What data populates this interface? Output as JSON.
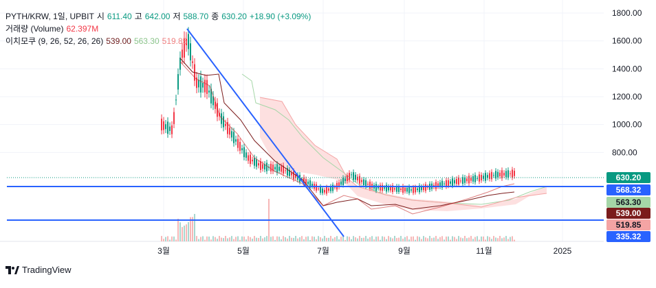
{
  "legend": {
    "symbol": "PYTH/KRW, 1일, UPBIT",
    "open_label": "시",
    "open": "611.40",
    "high_label": "고",
    "high": "642.00",
    "low_label": "저",
    "low": "588.70",
    "close_label": "종",
    "close": "630.20",
    "change": "+18.90 (+3.09%)",
    "volume_label": "거래량 (Volume)",
    "volume_value": "62.397M",
    "ichimoku_label": "이치모쿠 (9, 26, 52, 26, 26)",
    "ichimoku_v1": "539.00",
    "ichimoku_v2": "563.30",
    "ichimoku_v3": "519.85"
  },
  "price_axis": [
    "1800.00",
    "1600.00",
    "1400.00",
    "1200.00",
    "1000.00",
    "800.00"
  ],
  "time_axis": [
    "3월",
    "5월",
    "7월",
    "9월",
    "11월",
    "2025"
  ],
  "badges": [
    {
      "label": "630.20",
      "color": "#089981"
    },
    {
      "label": "568.32",
      "color": "#2962ff"
    },
    {
      "label": "563.30",
      "color": "#a5d6a7"
    },
    {
      "label": "539.00",
      "color": "#7b1c1c"
    },
    {
      "label": "519.85",
      "color": "#f4a4a4"
    },
    {
      "label": "335.32",
      "color": "#2962ff"
    }
  ],
  "footer": {
    "brand": "TradingView"
  },
  "colors": {
    "up": "#089981",
    "down": "#f23645",
    "line": "#2962ff"
  }
}
